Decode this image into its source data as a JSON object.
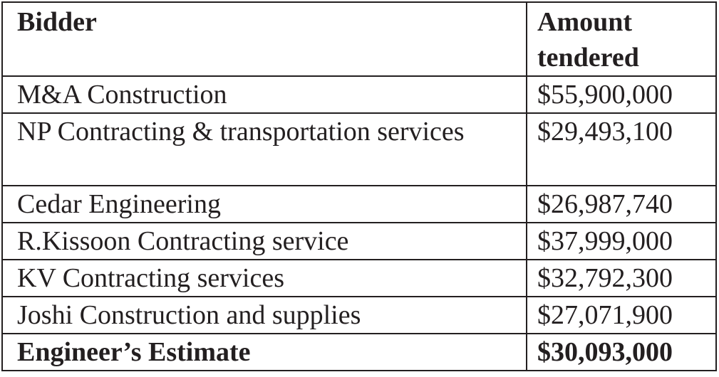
{
  "table": {
    "header": [
      "Bidder",
      "Amount tendered"
    ],
    "rows": [
      [
        "M&A Construction",
        "$55,900,000"
      ],
      [
        "NP Contracting & transportation services",
        "$29,493,100"
      ],
      [
        "Cedar Engineering",
        "$26,987,740"
      ],
      [
        "R.Kissoon Contracting service",
        "$37,999,000"
      ],
      [
        "KV Contracting services",
        "$32,792,300"
      ],
      [
        "Joshi Construction and supplies",
        "$27,071,900"
      ],
      [
        "Engineer’s Estimate",
        "$30,093,000"
      ]
    ]
  }
}
